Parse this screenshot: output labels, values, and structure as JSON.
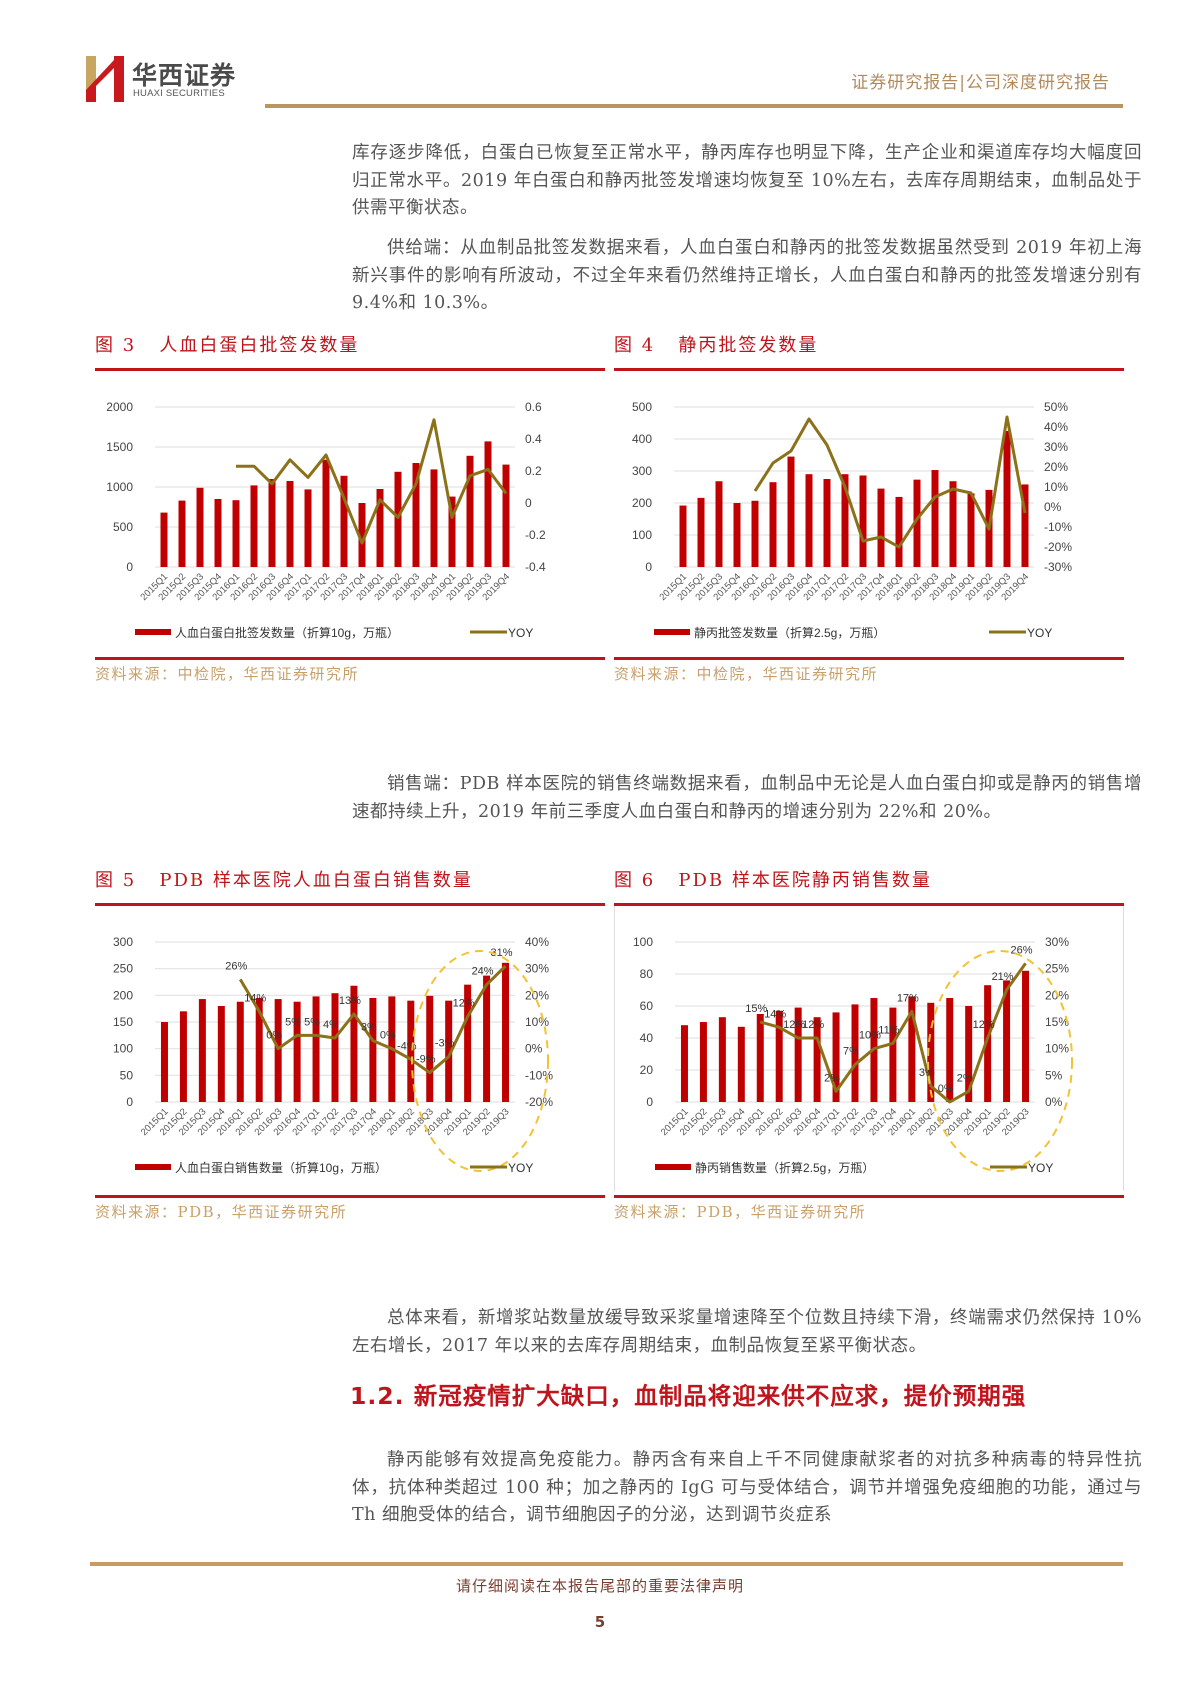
{
  "header": {
    "logo_cn": "华西证券",
    "logo_en": "HUAXI SECURITIES",
    "report_type": "证券研究报告|公司深度研究报告",
    "colors": {
      "gold": "#b9965f",
      "red": "#c0141c"
    }
  },
  "body": {
    "para1": "库存逐步降低，白蛋白已恢复至正常水平，静丙库存也明显下降，生产企业和渠道库存均大幅度回归正常水平。2019 年白蛋白和静丙批签发增速均恢复至 10%左右，去库存周期结束，血制品处于供需平衡状态。",
    "para2": "供给端：从血制品批签发数据来看，人血白蛋白和静丙的批签发数据虽然受到 2019 年初上海新兴事件的影响有所波动，不过全年来看仍然维持正增长，人血白蛋白和静丙的批签发增速分别有 9.4%和 10.3%。",
    "para3": "销售端：PDB 样本医院的销售终端数据来看，血制品中无论是人血白蛋白抑或是静丙的销售增速都持续上升，2019 年前三季度人血白蛋白和静丙的增速分别为 22%和 20%。",
    "para4": "总体来看，新增浆站数量放缓导致采浆量增速降至个位数且持续下滑，终端需求仍然保持 10%左右增长，2017 年以来的去库存周期结束，血制品恢复至紧平衡状态。",
    "section_heading": "1.2. 新冠疫情扩大缺口，血制品将迎来供不应求，提价预期强",
    "para5": "静丙能够有效提高免疫能力。静丙含有来自上千不同健康献浆者的对抗多种病毒的特异性抗体，抗体种类超过 100 种；加之静丙的 IgG 可与受体结合，调节并增强免疫细胞的功能，通过与 Th 细胞受体的结合，调节细胞因子的分泌，达到调节炎症系"
  },
  "figures": [
    {
      "label": "图 3",
      "title": "人血白蛋白批签发数量",
      "source": "资料来源：中检院，华西证券研究所"
    },
    {
      "label": "图 4",
      "title": "静丙批签发数量",
      "source": "资料来源：中检院，华西证券研究所"
    },
    {
      "label": "图 5",
      "title": "PDB 样本医院人血白蛋白销售数量",
      "source": "资料来源：PDB，华西证券研究所"
    },
    {
      "label": "图 6",
      "title": "PDB 样本医院静丙销售数量",
      "source": "资料来源：PDB，华西证券研究所"
    }
  ],
  "chart_data": [
    {
      "type": "bar",
      "title": "人血白蛋白批签发数量",
      "categories": [
        "2015Q1",
        "2015Q2",
        "2015Q3",
        "2015Q4",
        "2016Q1",
        "2016Q2",
        "2016Q3",
        "2016Q4",
        "2017Q1",
        "2017Q2",
        "2017Q3",
        "2017Q4",
        "2018Q1",
        "2018Q2",
        "2018Q3",
        "2018Q4",
        "2019Q1",
        "2019Q2",
        "2019Q3",
        "2019Q4"
      ],
      "series": [
        {
          "name": "人血白蛋白批签发数量（折算10g，万瓶）",
          "type": "bar",
          "axis": "left",
          "color": "#c00000",
          "values": [
            680,
            830,
            990,
            850,
            835,
            1020,
            1100,
            1075,
            970,
            1340,
            1140,
            800,
            975,
            1190,
            1300,
            1220,
            880,
            1390,
            1570,
            1280
          ]
        },
        {
          "name": "YOY",
          "type": "line",
          "axis": "right",
          "color": "#8b7118",
          "values": [
            null,
            null,
            null,
            null,
            0.23,
            0.23,
            0.12,
            0.27,
            0.16,
            0.3,
            0.03,
            -0.25,
            0.02,
            -0.09,
            0.12,
            0.52,
            -0.09,
            0.17,
            0.21,
            0.06
          ]
        }
      ],
      "ylim_left": [
        0,
        2000
      ],
      "yticks_left": [
        0,
        500,
        1000,
        1500,
        2000
      ],
      "ylim_right": [
        -0.4,
        0.6
      ],
      "yticks_right": [
        "-0.4",
        "-0.2",
        "0",
        "0.2",
        "0.4",
        "0.6"
      ],
      "grid": true,
      "legend_position": "bottom"
    },
    {
      "type": "bar",
      "title": "静丙批签发数量",
      "categories": [
        "2015Q1",
        "2015Q2",
        "2015Q3",
        "2015Q4",
        "2016Q1",
        "2016Q2",
        "2016Q3",
        "2016Q4",
        "2017Q1",
        "2017Q2",
        "2017Q3",
        "2017Q4",
        "2018Q1",
        "2018Q2",
        "2018Q3",
        "2018Q4",
        "2019Q1",
        "2019Q2",
        "2019Q3",
        "2019Q4"
      ],
      "series": [
        {
          "name": "静丙批签发数量（折算2.5g，万瓶）",
          "type": "bar",
          "axis": "left",
          "color": "#c00000",
          "values": [
            192,
            216,
            268,
            200,
            207,
            265,
            345,
            290,
            275,
            290,
            286,
            245,
            219,
            273,
            303,
            268,
            230,
            241,
            425,
            258
          ]
        },
        {
          "name": "YOY",
          "type": "line",
          "axis": "right",
          "color": "#8b7118",
          "values": [
            null,
            null,
            null,
            null,
            0.08,
            0.22,
            0.28,
            0.44,
            0.31,
            0.1,
            -0.17,
            -0.15,
            -0.2,
            -0.06,
            0.05,
            0.09,
            0.07,
            -0.11,
            0.45,
            -0.03
          ]
        }
      ],
      "ylim_left": [
        0,
        500
      ],
      "yticks_left": [
        0,
        100,
        200,
        300,
        400,
        500
      ],
      "ylim_right": [
        -0.3,
        0.5
      ],
      "yticks_right": [
        "-30%",
        "-20%",
        "-10%",
        "0%",
        "10%",
        "20%",
        "30%",
        "40%",
        "50%"
      ],
      "grid": true,
      "legend_position": "bottom"
    },
    {
      "type": "bar",
      "title": "PDB 样本医院人血白蛋白销售数量",
      "categories": [
        "2015Q1",
        "2015Q2",
        "2015Q3",
        "2015Q4",
        "2016Q1",
        "2016Q2",
        "2016Q3",
        "2016Q4",
        "2017Q1",
        "2017Q2",
        "2017Q3",
        "2017Q4",
        "2018Q1",
        "2018Q2",
        "2018Q3",
        "2018Q4",
        "2019Q1",
        "2019Q2",
        "2019Q3"
      ],
      "series": [
        {
          "name": "人血白蛋白销售数量（折算10g，万瓶）",
          "type": "bar",
          "axis": "left",
          "color": "#c00000",
          "values": [
            150,
            170,
            193,
            180,
            188,
            195,
            193,
            188,
            198,
            204,
            218,
            195,
            198,
            190,
            199,
            190,
            220,
            237,
            261
          ]
        },
        {
          "name": "YOY",
          "type": "line",
          "axis": "right",
          "color": "#8b7118",
          "values": [
            null,
            null,
            null,
            null,
            0.26,
            0.14,
            0.0,
            0.05,
            0.05,
            0.04,
            0.13,
            0.03,
            0.0,
            -0.04,
            -0.09,
            -0.03,
            0.12,
            0.24,
            0.31
          ],
          "data_labels": [
            "",
            "",
            "",
            "",
            "26%",
            "14%",
            "0%",
            "5%",
            "5%",
            "4%",
            "13%",
            "3%",
            "0%",
            "-4%",
            "-9%",
            "-3%",
            "12%",
            "24%",
            "31%"
          ]
        }
      ],
      "ylim_left": [
        0,
        300
      ],
      "yticks_left": [
        0,
        50,
        100,
        150,
        200,
        250,
        300
      ],
      "ylim_right": [
        -0.2,
        0.4
      ],
      "yticks_right": [
        "-20%",
        "-10%",
        "0%",
        "10%",
        "20%",
        "30%",
        "40%"
      ],
      "annotations": [
        "dashed yellow ellipse highlighting 2018Q2–2019Q3"
      ],
      "grid": true,
      "legend_position": "bottom"
    },
    {
      "type": "bar",
      "title": "PDB 样本医院静丙销售数量",
      "categories": [
        "2015Q1",
        "2015Q2",
        "2015Q3",
        "2015Q4",
        "2016Q1",
        "2016Q2",
        "2016Q3",
        "2016Q4",
        "2017Q1",
        "2017Q2",
        "2017Q3",
        "2017Q4",
        "2018Q1",
        "2018Q2",
        "2018Q3",
        "2018Q4",
        "2019Q1",
        "2019Q2",
        "2019Q3"
      ],
      "series": [
        {
          "name": "静丙销售数量（折算2.5g，万瓶）",
          "type": "bar",
          "axis": "left",
          "color": "#c00000",
          "values": [
            48,
            50,
            53,
            47,
            55,
            57,
            59,
            53,
            56,
            61,
            65,
            59,
            66,
            62,
            65,
            60,
            73,
            76,
            82
          ]
        },
        {
          "name": "YOY",
          "type": "line",
          "axis": "right",
          "color": "#8b7118",
          "values": [
            null,
            null,
            null,
            null,
            0.15,
            0.14,
            0.12,
            0.12,
            0.02,
            0.07,
            0.1,
            0.11,
            0.17,
            0.03,
            0.0,
            0.02,
            0.12,
            0.21,
            0.26
          ],
          "data_labels": [
            "",
            "",
            "",
            "",
            "15%",
            "14%",
            "12%",
            "12%",
            "2%",
            "7%",
            "10%",
            "11%",
            "17%",
            "3%",
            "0%",
            "2%",
            "12%",
            "21%",
            "26%"
          ]
        }
      ],
      "ylim_left": [
        0,
        100
      ],
      "yticks_left": [
        0,
        20,
        40,
        60,
        80,
        100
      ],
      "ylim_right": [
        0,
        0.3
      ],
      "yticks_right": [
        "0%",
        "5%",
        "10%",
        "15%",
        "20%",
        "25%",
        "30%"
      ],
      "annotations": [
        "dashed yellow ellipse highlighting 2018Q1–2019Q3"
      ],
      "grid": true,
      "legend_position": "bottom"
    }
  ],
  "footer": {
    "note": "请仔细阅读在本报告尾部的重要法律声明",
    "page_number": "5"
  }
}
